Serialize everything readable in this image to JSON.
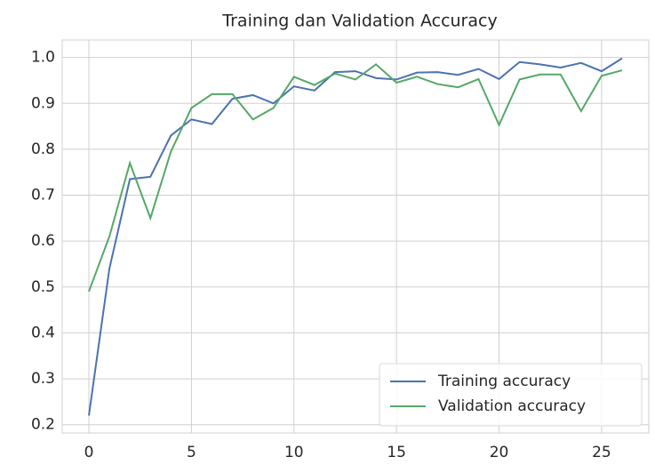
{
  "chart_data": {
    "type": "line",
    "title": "Training dan Validation Accuracy",
    "x": [
      0,
      1,
      2,
      3,
      4,
      5,
      6,
      7,
      8,
      9,
      10,
      11,
      12,
      13,
      14,
      15,
      16,
      17,
      18,
      19,
      20,
      21,
      22,
      23,
      24,
      25,
      26
    ],
    "series": [
      {
        "name": "Training accuracy",
        "color": "#4c72b0",
        "values": [
          0.22,
          0.54,
          0.735,
          0.74,
          0.83,
          0.865,
          0.855,
          0.91,
          0.918,
          0.9,
          0.937,
          0.928,
          0.968,
          0.97,
          0.955,
          0.952,
          0.967,
          0.968,
          0.962,
          0.975,
          0.953,
          0.99,
          0.985,
          0.978,
          0.988,
          0.97,
          0.998
        ]
      },
      {
        "name": "Validation accuracy",
        "color": "#55a868",
        "values": [
          0.49,
          0.61,
          0.77,
          0.65,
          0.795,
          0.89,
          0.92,
          0.92,
          0.865,
          0.89,
          0.958,
          0.94,
          0.965,
          0.952,
          0.985,
          0.945,
          0.958,
          0.942,
          0.935,
          0.953,
          0.853,
          0.952,
          0.963,
          0.963,
          0.883,
          0.96,
          0.972
        ]
      }
    ],
    "xlim": [
      -1.3,
      27.3
    ],
    "ylim": [
      0.182,
      1.038
    ],
    "xticks": [
      0,
      5,
      10,
      15,
      20,
      25
    ],
    "yticks": [
      {
        "value": 0.2,
        "label": "0.2"
      },
      {
        "value": 0.3,
        "label": "0.3"
      },
      {
        "value": 0.4,
        "label": "0.4"
      },
      {
        "value": 0.5,
        "label": "0.5"
      },
      {
        "value": 0.6,
        "label": "0.6"
      },
      {
        "value": 0.7,
        "label": "0.7"
      },
      {
        "value": 0.8,
        "label": "0.8"
      },
      {
        "value": 0.9,
        "label": "0.9"
      },
      {
        "value": 1.0,
        "label": "1.0"
      }
    ],
    "grid": true,
    "legend": "lower right"
  }
}
